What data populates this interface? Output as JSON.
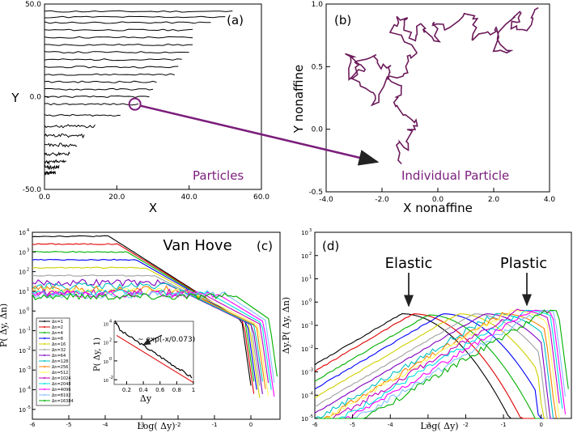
{
  "colors": {
    "purple": "#7b1d7b",
    "particle_line": "#6b1a5a",
    "series": [
      "#000000",
      "#e00000",
      "#00b000",
      "#0000ff",
      "#d0d000",
      "#a0a0a0",
      "#8000c0",
      "#00c0c0",
      "#ff8000",
      "#ffff60",
      "#c000c0",
      "#00e0e0",
      "#ff00ff",
      "#80c0ff",
      "#00b000"
    ]
  },
  "chart_data": [
    {
      "panel": "(a)",
      "type": "line",
      "title": "",
      "xlabel": "X",
      "ylabel": "Y",
      "xlim": [
        0,
        60
      ],
      "ylim": [
        -50,
        50
      ],
      "x_ticks": [
        "0.0",
        "20.0",
        "40.0",
        "60.0"
      ],
      "y_ticks": [
        "50.0",
        "0.0",
        "-50.0"
      ],
      "annotation": "Particles",
      "description_rows": [
        {
          "y": 46,
          "x_end": 52
        },
        {
          "y": 43,
          "x_end": 50
        },
        {
          "y": 40,
          "x_end": 46
        },
        {
          "y": 36,
          "x_end": 41
        },
        {
          "y": 32,
          "x_end": 41
        },
        {
          "y": 28,
          "x_end": 41
        },
        {
          "y": 24,
          "x_end": 40
        },
        {
          "y": 20,
          "x_end": 38
        },
        {
          "y": 16,
          "x_end": 37
        },
        {
          "y": 12,
          "x_end": 36
        },
        {
          "y": 8,
          "x_end": 31
        },
        {
          "y": 4,
          "x_end": 30
        },
        {
          "y": 0,
          "x_end": 29
        },
        {
          "y": -4,
          "x_end": 26
        },
        {
          "y": -10,
          "x_end": 21
        },
        {
          "y": -16,
          "x_end": 14
        },
        {
          "y": -21,
          "x_end": 11
        },
        {
          "y": -26,
          "x_end": 9
        },
        {
          "y": -31,
          "x_end": 7
        },
        {
          "y": -35,
          "x_end": 6
        },
        {
          "y": -38,
          "x_end": 4
        },
        {
          "y": -41,
          "x_end": 3
        }
      ],
      "highlight": {
        "x": 25,
        "y": -4
      }
    },
    {
      "panel": "(b)",
      "type": "line",
      "title": "",
      "xlabel": "X nonaffine",
      "ylabel": "Y nonaffine",
      "xlim": [
        -4,
        4
      ],
      "ylim": [
        -0.5,
        1
      ],
      "x_ticks": [
        "-4.0",
        "-2.0",
        "0.0",
        "2.0",
        "4.0"
      ],
      "y_ticks": [
        "1.0",
        "0.5",
        "0.0",
        "-0.5"
      ],
      "annotation": "Individual Particle",
      "series": [
        {
          "name": "trajectory",
          "x": [
            -1.3,
            -1.4,
            -1.1,
            -1.0,
            -0.7,
            -1.2,
            -1.6,
            -1.2,
            -1.8,
            -2.3,
            -2.4,
            -3.0,
            -2.8,
            -3.2,
            -3.1,
            -2.6,
            -3.0,
            -2.2,
            -2.1,
            -1.6,
            -1.8,
            -1.2,
            -1.1,
            -0.8,
            -1.6,
            -1.4,
            -1.0,
            -1.3,
            -0.8,
            -0.6,
            -0.4,
            0.0,
            -0.2,
            0.3,
            1.0,
            1.4,
            1.2,
            1.8,
            2.2,
            2.0,
            2.6,
            2.1,
            2.8,
            3.0,
            2.6,
            3.3,
            3.5,
            3.6
          ],
          "y": [
            -0.28,
            -0.1,
            -0.15,
            0.0,
            0.05,
            0.12,
            0.22,
            0.32,
            0.4,
            0.18,
            0.32,
            0.38,
            0.5,
            0.62,
            0.42,
            0.5,
            0.56,
            0.6,
            0.48,
            0.52,
            0.4,
            0.42,
            0.56,
            0.62,
            0.78,
            0.9,
            0.88,
            0.82,
            0.72,
            0.84,
            0.78,
            0.7,
            0.86,
            0.8,
            0.92,
            0.88,
            0.72,
            0.76,
            0.82,
            0.64,
            0.62,
            0.74,
            0.92,
            0.9,
            0.82,
            0.8,
            0.93,
            0.97
          ]
        }
      ]
    },
    {
      "panel": "(c)",
      "type": "line",
      "title": "Van Hove",
      "xlabel": "Log( Δy)",
      "ylabel": "P( Δy, Δn)",
      "xlim": [
        -6,
        0.8
      ],
      "ylim": [
        -5.5,
        4
      ],
      "x_ticks": [
        "-6",
        "-5",
        "-4",
        "-3",
        "-2",
        "-1",
        "0"
      ],
      "y_ticks": [
        "10",
        "10",
        "10",
        "10",
        "10",
        "10",
        "10",
        "10",
        "10",
        "10"
      ],
      "y_exponents": [
        "4",
        "3",
        "2",
        "1",
        "0",
        "-1",
        "-2",
        "-3",
        "-4",
        "-5"
      ],
      "legend": [
        "Δn=1",
        "Δn=2",
        "Δn=4",
        "Δn=8",
        "Δn=16",
        "Δn=32",
        "Δn=64",
        "Δn=128",
        "Δn=256",
        "Δn=512",
        "Δn=1024",
        "Δn=2048",
        "Δn=4096",
        "Δn=8192",
        "Δn=16384"
      ],
      "series_plateau": [
        3.8,
        3.4,
        3.0,
        2.6,
        2.2,
        1.8,
        1.45,
        1.25,
        1.1,
        1.0,
        0.95,
        0.9,
        0.85,
        0.8,
        0.75
      ],
      "series_cutoff": [
        0.0,
        0.05,
        0.1,
        0.15,
        0.2,
        0.25,
        0.3,
        0.35,
        0.4,
        0.45,
        0.5,
        0.55,
        0.6,
        0.65,
        0.75
      ],
      "inset": {
        "xlabel": "Δy",
        "ylabel": "P( Δy, 1)",
        "x_ticks": [
          "0.2",
          "0.4",
          "0.6",
          "0.8",
          "1"
        ],
        "y_ticks": [
          "10",
          "10",
          "10",
          "10"
        ],
        "y_exponents": [
          "4",
          "2",
          "0",
          "-2"
        ],
        "fit_label": "~ exp(-x/0.073)"
      }
    },
    {
      "panel": "(d)",
      "type": "line",
      "title": "",
      "xlabel": "Log( Δy)",
      "ylabel": "Δy.P( Δy, Δn)",
      "xlim": [
        -6,
        0.8
      ],
      "ylim": [
        -5,
        3
      ],
      "x_ticks": [
        "-6",
        "-5",
        "-4",
        "-3",
        "-2",
        "-1",
        "0"
      ],
      "y_ticks": [
        "10",
        "10",
        "10",
        "10",
        "10",
        "10",
        "10",
        "10",
        "10"
      ],
      "y_exponents": [
        "3",
        "2",
        "1",
        "0",
        "-1",
        "-2",
        "-3",
        "-4",
        "-5"
      ],
      "annotations": [
        "Elastic",
        "Plastic"
      ],
      "peak_positions": [
        -3.7,
        -3.4,
        -3.0,
        -2.6,
        -2.2,
        -1.8,
        -1.5,
        -1.2,
        -1.0,
        -0.8,
        -0.6,
        -0.4,
        -0.2,
        0.0,
        0.2
      ]
    }
  ]
}
